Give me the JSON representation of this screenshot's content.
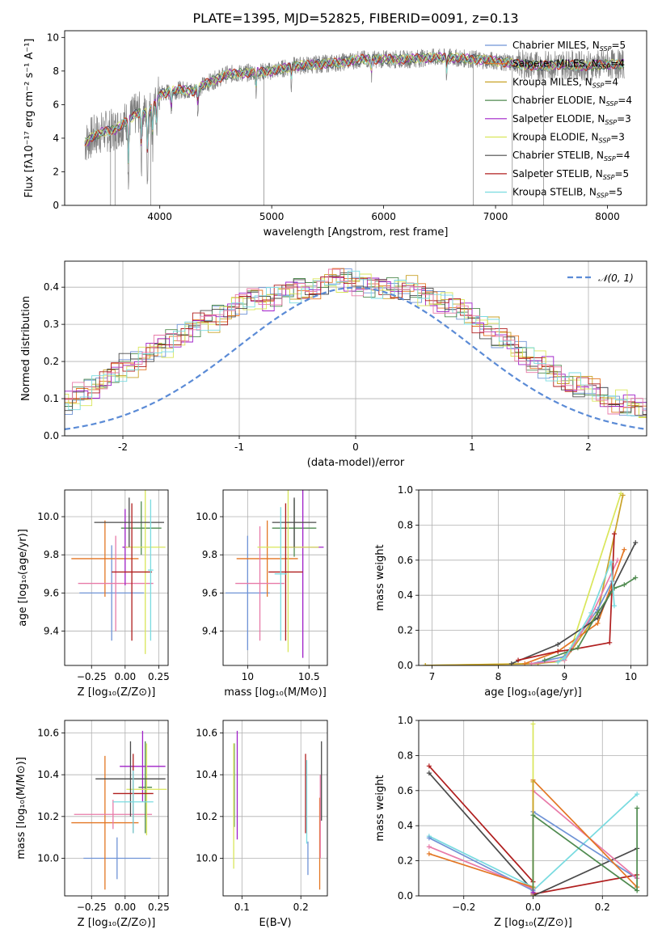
{
  "figure": {
    "title": "PLATE=1395, MJD=52825, FIBERID=0091, z=0.13"
  },
  "colors": {
    "Chabrier MILES": "#6f93d6",
    "Salpeter MILES": "#e37623",
    "Kroupa MILES": "#c9a227",
    "Chabrier ELODIE": "#4f8a4f",
    "Salpeter ELODIE": "#a020c8",
    "Kroupa ELODIE": "#d9e65a",
    "Chabrier STELIB": "#4a4a4a",
    "Salpeter STELIB": "#b01e1e",
    "Kroupa STELIB": "#79dbe0",
    "pink": "#e87aa8",
    "data": "#808080",
    "normal": "#5b8bd6"
  },
  "chart_data": [
    {
      "id": "spectrum",
      "type": "line",
      "xlabel": "wavelength [Angstrom, rest frame]",
      "ylabel": "Flux [fλ10⁻¹⁷ erg cm⁻² s⁻¹ A⁻¹]",
      "xlim": [
        3150,
        8350
      ],
      "ylim": [
        0,
        10.4
      ],
      "xticks": [
        4000,
        5000,
        6000,
        7000,
        8000
      ],
      "yticks": [
        0,
        2,
        4,
        6,
        8,
        10
      ],
      "legend_position": "top-right",
      "legend": [
        {
          "name": "Chabrier MILES",
          "nssp": "5"
        },
        {
          "name": "Salpeter MILES",
          "nssp": "4"
        },
        {
          "name": "Kroupa MILES",
          "nssp": "4"
        },
        {
          "name": "Chabrier ELODIE",
          "nssp": "4"
        },
        {
          "name": "Salpeter ELODIE",
          "nssp": "3"
        },
        {
          "name": "Kroupa ELODIE",
          "nssp": "3"
        },
        {
          "name": "Chabrier STELIB",
          "nssp": "4"
        },
        {
          "name": "Salpeter STELIB",
          "nssp": "5"
        },
        {
          "name": "Kroupa STELIB",
          "nssp": "5"
        }
      ],
      "continuum": [
        [
          3330,
          3.7
        ],
        [
          3400,
          4.1
        ],
        [
          3500,
          4.4
        ],
        [
          3600,
          4.5
        ],
        [
          3700,
          5.0
        ],
        [
          3800,
          5.5
        ],
        [
          3900,
          5.5
        ],
        [
          4000,
          6.6
        ],
        [
          4100,
          6.8
        ],
        [
          4200,
          6.9
        ],
        [
          4300,
          6.8
        ],
        [
          4400,
          7.2
        ],
        [
          4600,
          7.8
        ],
        [
          4800,
          7.9
        ],
        [
          5000,
          8.0
        ],
        [
          5200,
          8.3
        ],
        [
          5400,
          8.4
        ],
        [
          5600,
          8.5
        ],
        [
          5800,
          8.7
        ],
        [
          6000,
          8.7
        ],
        [
          6200,
          8.7
        ],
        [
          6400,
          8.8
        ],
        [
          6600,
          8.8
        ],
        [
          6800,
          8.7
        ],
        [
          7000,
          8.6
        ],
        [
          7200,
          8.4
        ],
        [
          7400,
          8.3
        ],
        [
          7600,
          8.4
        ],
        [
          7800,
          8.3
        ],
        [
          8000,
          8.4
        ],
        [
          8150,
          8.4
        ]
      ]
    },
    {
      "id": "residuals",
      "type": "step",
      "xlabel": "(data-model)/error",
      "ylabel": "Normed distribution",
      "xlim": [
        -2.5,
        2.5
      ],
      "ylim": [
        0,
        0.47
      ],
      "xticks": [
        -2,
        -1,
        0,
        1,
        2
      ],
      "yticks": [
        0.0,
        0.1,
        0.2,
        0.3,
        0.4
      ],
      "legend_position": "top-right",
      "legend": [
        "𝒩(0, 1)"
      ],
      "bin_width": 0.1,
      "hist_template": [
        0.02,
        0.03,
        0.04,
        0.04,
        0.04,
        0.05,
        0.05,
        0.06,
        0.07,
        0.08,
        0.09,
        0.11,
        0.13,
        0.15,
        0.17,
        0.19,
        0.21,
        0.23,
        0.24,
        0.26,
        0.28,
        0.3,
        0.31,
        0.33,
        0.35,
        0.36,
        0.37,
        0.37,
        0.38,
        0.39,
        0.4,
        0.4,
        0.41,
        0.42,
        0.42,
        0.41,
        0.4,
        0.4,
        0.4,
        0.4,
        0.38,
        0.37,
        0.36,
        0.35,
        0.33,
        0.31,
        0.29,
        0.26,
        0.24,
        0.22,
        0.2,
        0.18,
        0.16,
        0.14,
        0.13,
        0.12,
        0.1,
        0.09,
        0.08,
        0.07,
        0.06,
        0.05,
        0.05,
        0.04,
        0.04,
        0.04,
        0.03,
        0.03,
        0.03,
        0.02
      ]
    },
    {
      "id": "age-vs-z",
      "type": "errorbar",
      "xlabel": "Z [log₁₀(Z/Z⊙)]",
      "ylabel": "age  [log₁₀(age/yr)]",
      "xlim": [
        -0.45,
        0.32
      ],
      "ylim": [
        9.22,
        10.14
      ],
      "xticks": [
        -0.25,
        0.0,
        0.25
      ],
      "xticklabels": [
        "−0.25",
        "0.00",
        "0.25"
      ],
      "yticks": [
        9.4,
        9.6,
        9.8,
        10.0
      ],
      "points": [
        {
          "series": "Chabrier MILES",
          "x": -0.1,
          "xerr": 0.24,
          "y": 9.6,
          "yerr": 0.25
        },
        {
          "series": "Salpeter MILES",
          "x": -0.15,
          "xerr": 0.25,
          "y": 9.78,
          "yerr": 0.2
        },
        {
          "series": "pink",
          "x": -0.07,
          "xerr": 0.28,
          "y": 9.65,
          "yerr": 0.25
        },
        {
          "series": "Chabrier ELODIE",
          "x": 0.12,
          "xerr": 0.15,
          "y": 9.94,
          "yerr": 0.14
        },
        {
          "series": "Salpeter ELODIE",
          "x": 0.0,
          "xerr": 0.02,
          "y": 9.84,
          "yerr": 0.2
        },
        {
          "series": "Kroupa ELODIE",
          "x": 0.15,
          "xerr": 0.15,
          "y": 9.84,
          "yerr": 0.56
        },
        {
          "series": "Chabrier STELIB",
          "x": 0.03,
          "xerr": 0.26,
          "y": 9.97,
          "yerr": 0.13
        },
        {
          "series": "Salpeter STELIB",
          "x": 0.05,
          "xerr": 0.15,
          "y": 9.71,
          "yerr": 0.36
        },
        {
          "series": "Kroupa STELIB",
          "x": 0.19,
          "xerr": 0.02,
          "y": 9.72,
          "yerr": 0.37
        }
      ]
    },
    {
      "id": "age-vs-mass",
      "type": "errorbar",
      "xlabel": "mass [log₁₀(M/M⊙)]",
      "ylabel": "",
      "xlim": [
        9.8,
        10.65
      ],
      "ylim": [
        9.22,
        10.14
      ],
      "xticks": [
        10.0,
        10.5
      ],
      "yticks": [
        9.4,
        9.6,
        9.8,
        10.0
      ],
      "points": [
        {
          "series": "Chabrier MILES",
          "x": 10.0,
          "xerr": 0.18,
          "y": 9.6,
          "yerr": 0.3
        },
        {
          "series": "Salpeter MILES",
          "x": 10.16,
          "xerr": 0.25,
          "y": 9.78,
          "yerr": 0.2
        },
        {
          "series": "pink",
          "x": 10.1,
          "xerr": 0.2,
          "y": 9.65,
          "yerr": 0.3
        },
        {
          "series": "Chabrier ELODIE",
          "x": 10.38,
          "xerr": 0.18,
          "y": 9.94,
          "yerr": 0.15
        },
        {
          "series": "Salpeter ELODIE",
          "x": 10.45,
          "xerr": 0.17,
          "y": 9.84,
          "yerr": 0.58
        },
        {
          "series": "Kroupa ELODIE",
          "x": 10.33,
          "xerr": 0.25,
          "y": 9.84,
          "yerr": 0.55
        },
        {
          "series": "Chabrier STELIB",
          "x": 10.38,
          "xerr": 0.18,
          "y": 9.97,
          "yerr": 0.13
        },
        {
          "series": "Salpeter STELIB",
          "x": 10.31,
          "xerr": 0.14,
          "y": 9.71,
          "yerr": 0.36
        },
        {
          "series": "Kroupa STELIB",
          "x": 10.27,
          "xerr": 0.05,
          "y": 9.7,
          "yerr": 0.35
        }
      ]
    },
    {
      "id": "mass-weight-vs-age",
      "type": "line",
      "xlabel": "age  [log₁₀(age/yr)]",
      "ylabel": "mass weight",
      "xlim": [
        6.8,
        10.25
      ],
      "ylim": [
        0,
        1.0
      ],
      "xticks": [
        7,
        8,
        9,
        10
      ],
      "yticks": [
        0.0,
        0.2,
        0.4,
        0.6,
        0.8,
        1.0
      ],
      "series": [
        {
          "name": "Kroupa ELODIE",
          "x": [
            6.9,
            8.5,
            8.9,
            9.1,
            9.85
          ],
          "y": [
            0.0,
            0.01,
            0.02,
            0.1,
            0.98
          ]
        },
        {
          "name": "Kroupa MILES",
          "x": [
            6.9,
            8.6,
            9.0,
            9.5,
            9.88
          ],
          "y": [
            0.0,
            0.01,
            0.03,
            0.3,
            0.97
          ]
        },
        {
          "name": "Chabrier MILES",
          "x": [
            8.5,
            9.0,
            9.5,
            9.72
          ],
          "y": [
            0.01,
            0.05,
            0.32,
            0.48
          ]
        },
        {
          "name": "Salpeter MILES",
          "x": [
            8.4,
            8.9,
            9.5,
            9.9
          ],
          "y": [
            0.01,
            0.08,
            0.24,
            0.66
          ]
        },
        {
          "name": "pink",
          "x": [
            8.5,
            9.0,
            9.4,
            9.8
          ],
          "y": [
            0.01,
            0.03,
            0.28,
            0.6
          ]
        },
        {
          "name": "Chabrier STELIB",
          "x": [
            8.2,
            8.9,
            9.5,
            10.07
          ],
          "y": [
            0.01,
            0.12,
            0.27,
            0.7
          ]
        },
        {
          "name": "Salpeter STELIB",
          "x": [
            8.3,
            8.9,
            9.1,
            9.68,
            9.75
          ],
          "y": [
            0.03,
            0.08,
            0.09,
            0.13,
            0.75
          ]
        },
        {
          "name": "Chabrier ELODIE",
          "x": [
            8.7,
            9.2,
            9.5,
            9.75,
            9.9,
            10.07
          ],
          "y": [
            0.03,
            0.1,
            0.3,
            0.44,
            0.46,
            0.5
          ]
        },
        {
          "name": "Kroupa STELIB",
          "x": [
            8.9,
            9.0,
            9.4,
            9.7,
            9.75
          ],
          "y": [
            0.02,
            0.04,
            0.3,
            0.59,
            0.34
          ]
        }
      ]
    },
    {
      "id": "mass-vs-z",
      "type": "errorbar",
      "xlabel": "Z [log₁₀(Z/Z⊙)]",
      "ylabel": "mass [log₁₀(M/M⊙)]",
      "xlim": [
        -0.45,
        0.32
      ],
      "ylim": [
        9.82,
        10.66
      ],
      "xticks": [
        -0.25,
        0.0,
        0.25
      ],
      "xticklabels": [
        "−0.25",
        "0.00",
        "0.25"
      ],
      "yticks": [
        10.0,
        10.2,
        10.4,
        10.6
      ],
      "points": [
        {
          "series": "Chabrier MILES",
          "x": -0.06,
          "xerr": 0.25,
          "y": 10.0,
          "yerr": 0.1
        },
        {
          "series": "Salpeter MILES",
          "x": -0.15,
          "xerr": 0.25,
          "y": 10.17,
          "yerr": 0.32
        },
        {
          "series": "pink",
          "x": -0.09,
          "xerr": 0.29,
          "y": 10.21,
          "yerr": 0.07
        },
        {
          "series": "Chabrier ELODIE",
          "x": 0.15,
          "xerr": 0.05,
          "y": 10.34,
          "yerr": 0.22
        },
        {
          "series": "Salpeter ELODIE",
          "x": 0.13,
          "xerr": 0.17,
          "y": 10.44,
          "yerr": 0.17
        },
        {
          "series": "Kroupa ELODIE",
          "x": 0.16,
          "xerr": 0.15,
          "y": 10.33,
          "yerr": 0.22
        },
        {
          "series": "Chabrier STELIB",
          "x": 0.04,
          "xerr": 0.26,
          "y": 10.38,
          "yerr": 0.18
        },
        {
          "series": "Salpeter STELIB",
          "x": 0.06,
          "xerr": 0.15,
          "y": 10.31,
          "yerr": 0.19
        },
        {
          "series": "Kroupa STELIB",
          "x": 0.06,
          "xerr": 0.15,
          "y": 10.27,
          "yerr": 0.15
        }
      ]
    },
    {
      "id": "mass-vs-ebv",
      "type": "errorbar",
      "xlabel": "E(B-V)",
      "ylabel": "",
      "xlim": [
        0.068,
        0.245
      ],
      "ylim": [
        9.82,
        10.66
      ],
      "xticks": [
        0.1,
        0.2
      ],
      "yticks": [
        10.0,
        10.2,
        10.4,
        10.6
      ],
      "points": [
        {
          "series": "Chabrier MILES",
          "x": 0.212,
          "y": 10.0,
          "yerr": 0.08
        },
        {
          "series": "Salpeter MILES",
          "x": 0.232,
          "y": 10.07,
          "yerr": 0.22
        },
        {
          "series": "pink",
          "x": 0.233,
          "y": 10.2,
          "yerr": 0.2
        },
        {
          "series": "Chabrier ELODIE",
          "x": 0.087,
          "y": 10.35,
          "yerr": 0.2
        },
        {
          "series": "Salpeter ELODIE",
          "x": 0.092,
          "y": 10.35,
          "yerr": 0.26
        },
        {
          "series": "Kroupa ELODIE",
          "x": 0.086,
          "y": 10.25,
          "yerr": 0.3
        },
        {
          "series": "Chabrier STELIB",
          "x": 0.235,
          "y": 10.37,
          "yerr": 0.19
        },
        {
          "series": "Salpeter STELIB",
          "x": 0.208,
          "y": 10.31,
          "yerr": 0.19
        },
        {
          "series": "Kroupa STELIB",
          "x": 0.21,
          "y": 10.27,
          "yerr": 0.2
        }
      ]
    },
    {
      "id": "mass-weight-vs-z",
      "type": "line",
      "xlabel": "Z [log₁₀(Z/Z⊙)]",
      "ylabel": "mass weight",
      "xlim": [
        -0.33,
        0.33
      ],
      "ylim": [
        0,
        1.0
      ],
      "xticks": [
        -0.2,
        0.0,
        0.2
      ],
      "xticklabels": [
        "−0.2",
        "0.0",
        "0.2"
      ],
      "yticks": [
        0.0,
        0.2,
        0.4,
        0.6,
        0.8,
        1.0
      ],
      "series": [
        {
          "name": "Salpeter STELIB",
          "x": [
            -0.3,
            0.0,
            0.0,
            0.3
          ],
          "y": [
            0.74,
            0.08,
            0.01,
            0.12
          ]
        },
        {
          "name": "Chabrier STELIB",
          "x": [
            -0.3,
            0.0,
            0.0,
            0.3
          ],
          "y": [
            0.7,
            0.03,
            0.0,
            0.27
          ]
        },
        {
          "name": "Kroupa STELIB",
          "x": [
            -0.3,
            0.0,
            0.0,
            0.3
          ],
          "y": [
            0.34,
            0.05,
            0.03,
            0.58
          ]
        },
        {
          "name": "Chabrier MILES",
          "x": [
            -0.3,
            0.0,
            0.0,
            0.3
          ],
          "y": [
            0.33,
            0.03,
            0.48,
            0.1
          ]
        },
        {
          "name": "pink",
          "x": [
            -0.3,
            0.0,
            0.0,
            0.3
          ],
          "y": [
            0.28,
            0.04,
            0.6,
            0.1
          ]
        },
        {
          "name": "Salpeter MILES",
          "x": [
            -0.3,
            0.0,
            0.0,
            0.3
          ],
          "y": [
            0.24,
            0.05,
            0.66,
            0.05
          ]
        },
        {
          "name": "Kroupa ELODIE",
          "x": [
            0.0,
            0.0
          ],
          "y": [
            0.0,
            0.98
          ]
        },
        {
          "name": "Kroupa MILES",
          "x": [
            0.0,
            0.0
          ],
          "y": [
            0.05,
            0.65
          ]
        },
        {
          "name": "Chabrier ELODIE",
          "x": [
            0.0,
            0.0,
            0.3,
            0.3
          ],
          "y": [
            0.02,
            0.46,
            0.03,
            0.5
          ]
        },
        {
          "name": "Salpeter ELODIE",
          "x": [
            0.0
          ],
          "y": [
            0.02
          ]
        }
      ]
    }
  ]
}
